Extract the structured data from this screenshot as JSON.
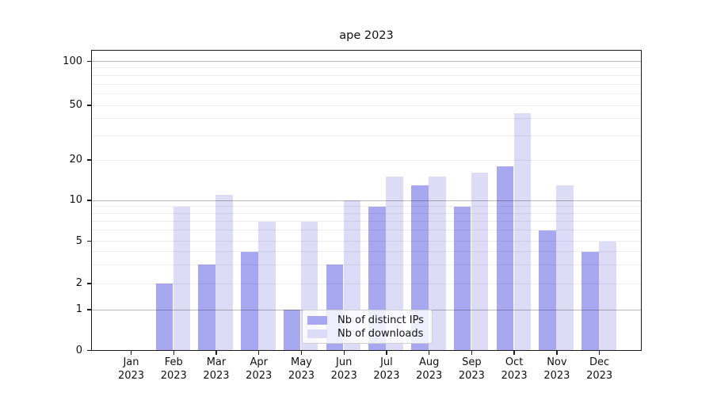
{
  "chart_data": {
    "type": "bar",
    "title": "ape 2023",
    "yscale": "symlog",
    "ylim": [
      0,
      130
    ],
    "grid": true,
    "y_ticks": [
      0,
      1,
      2,
      5,
      10,
      20,
      50,
      100
    ],
    "y_major_gridlines": [
      1,
      10,
      100
    ],
    "y_minor_gridlines": [
      2,
      3,
      4,
      5,
      6,
      7,
      8,
      9,
      20,
      30,
      40,
      50,
      60,
      70,
      80,
      90
    ],
    "categories": [
      {
        "month": "Jan",
        "year": "2023"
      },
      {
        "month": "Feb",
        "year": "2023"
      },
      {
        "month": "Mar",
        "year": "2023"
      },
      {
        "month": "Apr",
        "year": "2023"
      },
      {
        "month": "May",
        "year": "2023"
      },
      {
        "month": "Jun",
        "year": "2023"
      },
      {
        "month": "Jul",
        "year": "2023"
      },
      {
        "month": "Aug",
        "year": "2023"
      },
      {
        "month": "Sep",
        "year": "2023"
      },
      {
        "month": "Oct",
        "year": "2023"
      },
      {
        "month": "Nov",
        "year": "2023"
      },
      {
        "month": "Dec",
        "year": "2023"
      }
    ],
    "series": [
      {
        "name": "Nb of distinct IPs",
        "color": "#a8a8f1",
        "values": [
          0,
          2,
          3,
          4,
          1,
          3,
          9,
          13,
          9,
          18,
          6,
          4
        ]
      },
      {
        "name": "Nb of downloads",
        "color": "#dcdcf7",
        "values": [
          0,
          9,
          11,
          7,
          7,
          10,
          15,
          15,
          16,
          44,
          13,
          5
        ]
      }
    ],
    "legend": {
      "position": "lower center",
      "entries": [
        "Nb of distinct IPs",
        "Nb of downloads"
      ]
    }
  }
}
